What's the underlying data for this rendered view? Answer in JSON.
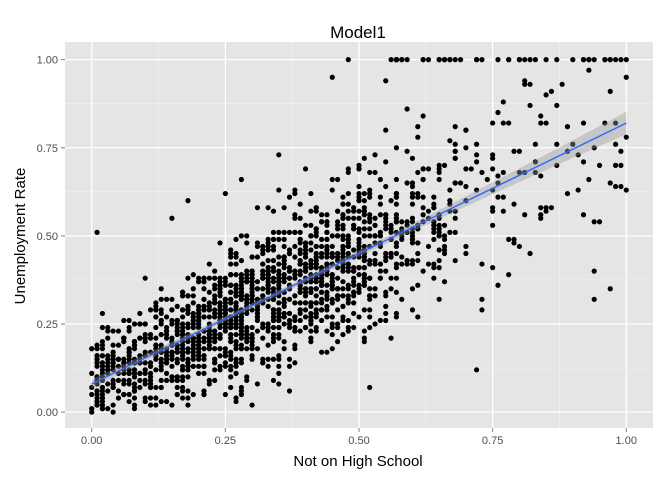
{
  "chart_data": {
    "type": "scatter",
    "title": "Model1",
    "xlabel": "Not on High School",
    "ylabel": "Unemployment Rate",
    "xlim": [
      -0.05,
      1.05
    ],
    "ylim": [
      -0.045,
      1.05
    ],
    "x_ticks": [
      "0.00",
      "0.25",
      "0.50",
      "0.75",
      "1.00"
    ],
    "y_ticks": [
      "0.00",
      "0.25",
      "0.50",
      "0.75",
      "1.00"
    ],
    "grid": true,
    "legend": "none",
    "point_count_estimate": 1800,
    "fit_line": {
      "intercept": 0.08,
      "slope": 0.74,
      "x_range": [
        0.0,
        1.0
      ]
    },
    "points_sample": [
      [
        0.0,
        0.0
      ],
      [
        0.01,
        0.51
      ],
      [
        0.02,
        0.28
      ],
      [
        0.02,
        0.04
      ],
      [
        0.05,
        0.15
      ],
      [
        0.1,
        0.38
      ],
      [
        0.15,
        0.55
      ],
      [
        0.18,
        0.6
      ],
      [
        0.2,
        0.3
      ],
      [
        0.25,
        0.62
      ],
      [
        0.28,
        0.66
      ],
      [
        0.3,
        0.2
      ],
      [
        0.35,
        0.73
      ],
      [
        0.4,
        0.37
      ],
      [
        0.45,
        0.95
      ],
      [
        0.48,
        1.0
      ],
      [
        0.5,
        0.41
      ],
      [
        0.52,
        0.07
      ],
      [
        0.57,
        1.0
      ],
      [
        0.6,
        0.55
      ],
      [
        0.62,
        1.0
      ],
      [
        0.7,
        0.8
      ],
      [
        0.72,
        0.12
      ],
      [
        0.75,
        0.57
      ],
      [
        0.8,
        1.0
      ],
      [
        0.85,
        0.58
      ],
      [
        0.9,
        1.0
      ],
      [
        0.94,
        0.4
      ],
      [
        0.96,
        1.0
      ],
      [
        1.0,
        1.0
      ],
      [
        1.0,
        0.63
      ],
      [
        1.0,
        0.78
      ],
      [
        1.0,
        0.95
      ]
    ]
  },
  "colors": {
    "panel": "#e5e5e5",
    "grid_major": "#ffffff",
    "grid_minor": "#f2f2f2",
    "points": "#000000",
    "fit_line": "#3366ff",
    "ribbon": "#999999"
  }
}
